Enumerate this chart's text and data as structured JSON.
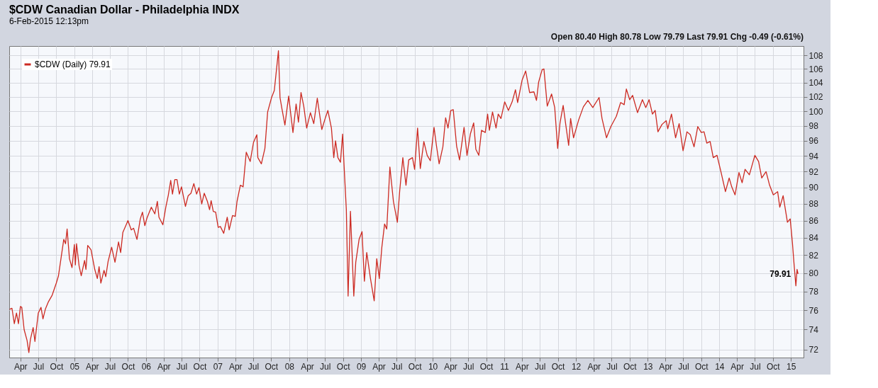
{
  "chart_data": {
    "type": "line",
    "title": "$CDW Canadian Dollar - Philadelphia INDX",
    "subtitle": "6-Feb-2015 12:13pm",
    "annotations": [
      "Open 80.40  High 80.78  Low 79.79  Last 79.91  Chg -0.49 (-0.61%)",
      {
        "text": "79.91",
        "x": "2015-02-06",
        "y": 79.91
      }
    ],
    "log": "y",
    "grid": true,
    "legend": "top left",
    "marker": "none",
    "line_style": "solid",
    "xlim": [
      "2004-02-04",
      "2015-03-06"
    ],
    "ylim": [
      71.2,
      109.4
    ],
    "yticks": [
      72,
      74,
      76,
      78,
      80,
      82,
      84,
      86,
      88,
      90,
      92,
      94,
      96,
      98,
      100,
      102,
      104,
      106,
      108
    ],
    "xticks": [
      {
        "value": "2004-04-01",
        "label": "Apr"
      },
      {
        "value": "2004-07-01",
        "label": "Jul"
      },
      {
        "value": "2004-10-01",
        "label": "Oct"
      },
      {
        "value": "2005-01-01",
        "label": "05"
      },
      {
        "value": "2005-04-01",
        "label": "Apr"
      },
      {
        "value": "2005-07-01",
        "label": "Jul"
      },
      {
        "value": "2005-10-01",
        "label": "Oct"
      },
      {
        "value": "2006-01-01",
        "label": "06"
      },
      {
        "value": "2006-04-01",
        "label": "Apr"
      },
      {
        "value": "2006-07-01",
        "label": "Jul"
      },
      {
        "value": "2006-10-01",
        "label": "Oct"
      },
      {
        "value": "2007-01-01",
        "label": "07"
      },
      {
        "value": "2007-04-01",
        "label": "Apr"
      },
      {
        "value": "2007-07-01",
        "label": "Jul"
      },
      {
        "value": "2007-10-01",
        "label": "Oct"
      },
      {
        "value": "2008-01-01",
        "label": "08"
      },
      {
        "value": "2008-04-01",
        "label": "Apr"
      },
      {
        "value": "2008-07-01",
        "label": "Jul"
      },
      {
        "value": "2008-10-01",
        "label": "Oct"
      },
      {
        "value": "2009-01-01",
        "label": "09"
      },
      {
        "value": "2009-04-01",
        "label": "Apr"
      },
      {
        "value": "2009-07-01",
        "label": "Jul"
      },
      {
        "value": "2009-10-01",
        "label": "Oct"
      },
      {
        "value": "2010-01-01",
        "label": "10"
      },
      {
        "value": "2010-04-01",
        "label": "Apr"
      },
      {
        "value": "2010-07-01",
        "label": "Jul"
      },
      {
        "value": "2010-10-01",
        "label": "Oct"
      },
      {
        "value": "2011-01-01",
        "label": "11"
      },
      {
        "value": "2011-04-01",
        "label": "Apr"
      },
      {
        "value": "2011-07-01",
        "label": "Jul"
      },
      {
        "value": "2011-10-01",
        "label": "Oct"
      },
      {
        "value": "2012-01-01",
        "label": "12"
      },
      {
        "value": "2012-04-01",
        "label": "Apr"
      },
      {
        "value": "2012-07-01",
        "label": "Jul"
      },
      {
        "value": "2012-10-01",
        "label": "Oct"
      },
      {
        "value": "2013-01-01",
        "label": "13"
      },
      {
        "value": "2013-04-01",
        "label": "Apr"
      },
      {
        "value": "2013-07-01",
        "label": "Jul"
      },
      {
        "value": "2013-10-01",
        "label": "Oct"
      },
      {
        "value": "2014-01-01",
        "label": "14"
      },
      {
        "value": "2014-04-01",
        "label": "Apr"
      },
      {
        "value": "2014-07-01",
        "label": "Jul"
      },
      {
        "value": "2014-10-01",
        "label": "Oct"
      },
      {
        "value": "2015-01-01",
        "label": "15"
      }
    ],
    "series": [
      {
        "name": "$CDW (Daily) 79.91",
        "color": "#cc2a22",
        "x": [
          "2004-02-06",
          "2004-02-18",
          "2004-03-01",
          "2004-03-12",
          "2004-03-22",
          "2004-04-01",
          "2004-04-08",
          "2004-04-20",
          "2004-05-05",
          "2004-05-14",
          "2004-05-22",
          "2004-06-05",
          "2004-06-14",
          "2004-07-01",
          "2004-07-15",
          "2004-07-25",
          "2004-08-06",
          "2004-08-22",
          "2004-09-10",
          "2004-10-01",
          "2004-10-12",
          "2004-10-26",
          "2004-11-08",
          "2004-11-17",
          "2004-11-25",
          "2004-12-07",
          "2004-12-20",
          "2005-01-01",
          "2005-01-06",
          "2005-01-12",
          "2005-01-25",
          "2005-02-05",
          "2005-02-22",
          "2005-03-01",
          "2005-03-10",
          "2005-03-27",
          "2005-04-15",
          "2005-04-28",
          "2005-05-07",
          "2005-05-16",
          "2005-06-01",
          "2005-06-10",
          "2005-06-22",
          "2005-07-10",
          "2005-07-27",
          "2005-08-14",
          "2005-08-25",
          "2005-09-05",
          "2005-09-22",
          "2005-10-01",
          "2005-10-18",
          "2005-10-30",
          "2005-11-16",
          "2005-12-03",
          "2005-12-14",
          "2005-12-26",
          "2006-01-06",
          "2006-01-28",
          "2006-02-15",
          "2006-02-28",
          "2006-03-08",
          "2006-03-28",
          "2006-04-12",
          "2006-04-25",
          "2006-05-07",
          "2006-05-16",
          "2006-05-28",
          "2006-06-08",
          "2006-06-20",
          "2006-07-01",
          "2006-07-21",
          "2006-08-04",
          "2006-08-18",
          "2006-09-02",
          "2006-09-16",
          "2006-09-28",
          "2006-10-12",
          "2006-10-25",
          "2006-11-10",
          "2006-11-21",
          "2006-11-29",
          "2006-12-10",
          "2006-12-22",
          "2007-01-04",
          "2007-01-15",
          "2007-02-01",
          "2007-02-19",
          "2007-03-01",
          "2007-03-18",
          "2007-04-01",
          "2007-04-10",
          "2007-04-27",
          "2007-05-11",
          "2007-05-27",
          "2007-06-16",
          "2007-07-03",
          "2007-07-20",
          "2007-07-25",
          "2007-08-12",
          "2007-08-30",
          "2007-09-13",
          "2007-10-03",
          "2007-10-17",
          "2007-11-07",
          "2007-11-15",
          "2007-11-25",
          "2007-12-10",
          "2007-12-29",
          "2008-01-20",
          "2008-02-05",
          "2008-02-17",
          "2008-03-01",
          "2008-03-15",
          "2008-03-30",
          "2008-04-18",
          "2008-05-05",
          "2008-05-23",
          "2008-06-15",
          "2008-07-01",
          "2008-07-16",
          "2008-08-03",
          "2008-08-15",
          "2008-08-24",
          "2008-09-05",
          "2008-09-18",
          "2008-09-29",
          "2008-10-06",
          "2008-10-18",
          "2008-10-27",
          "2008-11-08",
          "2008-11-25",
          "2008-12-05",
          "2008-12-22",
          "2009-01-06",
          "2009-01-18",
          "2009-01-30",
          "2009-02-18",
          "2009-03-09",
          "2009-03-22",
          "2009-04-04",
          "2009-04-17",
          "2009-05-01",
          "2009-05-12",
          "2009-05-28",
          "2009-06-15",
          "2009-07-05",
          "2009-07-17",
          "2009-08-02",
          "2009-08-18",
          "2009-09-01",
          "2009-09-20",
          "2009-10-01",
          "2009-10-16",
          "2009-10-30",
          "2009-11-17",
          "2009-12-04",
          "2009-12-20",
          "2010-01-08",
          "2010-01-20",
          "2010-02-03",
          "2010-02-22",
          "2010-03-08",
          "2010-03-20",
          "2010-04-03",
          "2010-04-16",
          "2010-05-03",
          "2010-05-18",
          "2010-06-10",
          "2010-06-25",
          "2010-07-12",
          "2010-07-29",
          "2010-08-09",
          "2010-08-24",
          "2010-09-07",
          "2010-09-26",
          "2010-10-08",
          "2010-10-17",
          "2010-11-02",
          "2010-11-20",
          "2010-12-01",
          "2010-12-15",
          "2011-01-03",
          "2011-01-22",
          "2011-02-10",
          "2011-02-27",
          "2011-03-10",
          "2011-04-02",
          "2011-04-20",
          "2011-05-10",
          "2011-06-01",
          "2011-06-14",
          "2011-06-25",
          "2011-07-13",
          "2011-07-22",
          "2011-08-08",
          "2011-08-30",
          "2011-09-15",
          "2011-09-30",
          "2011-10-12",
          "2011-10-28",
          "2011-11-10",
          "2011-11-25",
          "2011-12-05",
          "2011-12-20",
          "2012-01-15",
          "2012-02-08",
          "2012-03-02",
          "2012-03-27",
          "2012-04-28",
          "2012-05-13",
          "2012-06-05",
          "2012-06-27",
          "2012-07-25",
          "2012-08-16",
          "2012-09-03",
          "2012-09-14",
          "2012-10-01",
          "2012-10-16",
          "2012-11-10",
          "2012-12-05",
          "2012-12-22",
          "2013-01-08",
          "2013-01-25",
          "2013-02-08",
          "2013-02-22",
          "2013-03-15",
          "2013-04-05",
          "2013-04-13",
          "2013-05-02",
          "2013-05-23",
          "2013-06-10",
          "2013-06-30",
          "2013-07-20",
          "2013-08-06",
          "2013-08-25",
          "2013-09-13",
          "2013-10-01",
          "2013-10-15",
          "2013-10-29",
          "2013-11-15",
          "2013-12-01",
          "2013-12-20",
          "2014-01-10",
          "2014-02-01",
          "2014-02-20",
          "2014-03-05",
          "2014-03-22",
          "2014-04-11",
          "2014-04-27",
          "2014-05-12",
          "2014-06-03",
          "2014-07-01",
          "2014-07-20",
          "2014-08-05",
          "2014-08-27",
          "2014-09-14",
          "2014-10-03",
          "2014-10-25",
          "2014-11-05",
          "2014-11-22",
          "2014-12-14",
          "2014-12-28",
          "2015-01-08",
          "2015-01-17",
          "2015-01-26",
          "2015-02-01",
          "2015-02-06"
        ],
        "values": [
          76.1,
          76.2,
          74.6,
          75.7,
          74.6,
          76.4,
          76.3,
          74.0,
          72.9,
          71.7,
          73.0,
          74.2,
          72.8,
          75.7,
          76.3,
          75.1,
          76.1,
          76.9,
          77.6,
          78.9,
          79.7,
          81.8,
          83.8,
          83.3,
          85.0,
          81.6,
          80.6,
          83.2,
          80.9,
          83.3,
          80.8,
          79.7,
          81.4,
          80.4,
          83.1,
          82.6,
          80.4,
          79.4,
          80.7,
          78.9,
          80.3,
          79.6,
          81.3,
          82.9,
          81.2,
          83.5,
          82.3,
          84.6,
          85.5,
          86.0,
          84.9,
          85.1,
          83.8,
          86.2,
          87.0,
          85.4,
          86.3,
          87.6,
          86.8,
          88.3,
          86.4,
          85.5,
          87.6,
          89.1,
          90.9,
          89.2,
          91.0,
          91.0,
          89.2,
          90.1,
          87.7,
          89.0,
          89.3,
          90.5,
          89.2,
          90.0,
          88.0,
          89.3,
          88.3,
          87.3,
          88.4,
          87.1,
          87.0,
          85.2,
          85.3,
          84.5,
          86.4,
          84.9,
          86.6,
          86.5,
          88.3,
          90.3,
          90.1,
          94.5,
          93.3,
          95.8,
          96.8,
          93.8,
          93.0,
          95.0,
          99.9,
          101.9,
          102.9,
          108.7,
          101.9,
          100.3,
          98.1,
          102.1,
          97.1,
          101.0,
          98.5,
          102.6,
          100.7,
          97.7,
          99.8,
          98.3,
          101.8,
          97.5,
          98.9,
          100.1,
          97.7,
          93.8,
          96.0,
          93.8,
          93.2,
          96.9,
          93.0,
          87.3,
          77.5,
          87.1,
          77.5,
          81.2,
          83.8,
          84.7,
          79.1,
          82.3,
          79.4,
          77.0,
          81.6,
          79.4,
          82.9,
          85.6,
          85.0,
          92.6,
          88.3,
          85.8,
          89.6,
          93.8,
          90.3,
          93.5,
          93.8,
          92.3,
          97.7,
          92.4,
          95.9,
          94.1,
          93.4,
          97.8,
          95.4,
          93.0,
          95.2,
          99.1,
          97.7,
          100.1,
          100.2,
          95.3,
          93.5,
          97.8,
          94.1,
          96.9,
          98.4,
          94.9,
          94.1,
          97.4,
          97.1,
          99.6,
          97.4,
          99.9,
          97.7,
          99.6,
          99.0,
          101.3,
          100.1,
          101.3,
          103.0,
          101.2,
          104.4,
          105.7,
          102.6,
          102.7,
          101.5,
          104.1,
          105.9,
          106.0,
          100.7,
          102.4,
          100.5,
          95.0,
          98.4,
          100.8,
          98.2,
          95.4,
          99.0,
          96.4,
          98.8,
          100.6,
          101.5,
          100.5,
          101.9,
          99.0,
          96.4,
          97.9,
          99.3,
          101.2,
          100.9,
          103.1,
          101.6,
          102.2,
          99.8,
          101.6,
          100.5,
          101.6,
          99.6,
          100.1,
          97.2,
          98.2,
          98.7,
          97.6,
          99.6,
          96.4,
          98.3,
          94.7,
          97.2,
          96.8,
          95.2,
          97.9,
          97.1,
          97.2,
          95.7,
          95.9,
          93.8,
          94.1,
          91.9,
          89.5,
          91.2,
          90.1,
          89.1,
          91.9,
          90.6,
          92.3,
          91.6,
          94.1,
          93.3,
          91.2,
          92.0,
          90.3,
          89.1,
          89.5,
          87.6,
          89.0,
          85.8,
          86.2,
          83.5,
          80.9,
          78.6,
          80.4,
          79.91
        ]
      }
    ]
  }
}
